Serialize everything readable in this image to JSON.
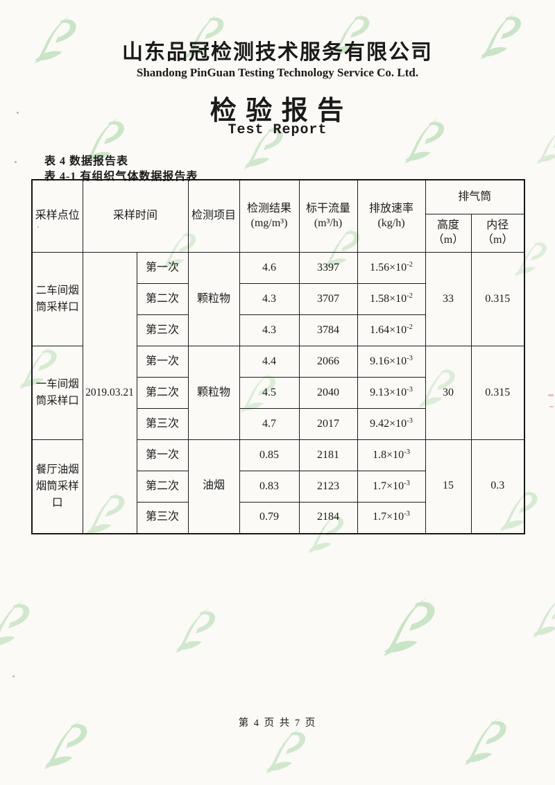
{
  "header": {
    "company_cn": "山东品冠检测技术服务有限公司",
    "company_en": "Shandong PinGuan Testing Technology Service Co. Ltd.",
    "title_cn": "检 验 报 告",
    "title_en": "Test Report"
  },
  "captions": {
    "line1": "表 4 数据报告表",
    "line2": "表 4-1 有组织气体数据报告表"
  },
  "table": {
    "headers": {
      "col_point": "采样点位",
      "col_time": "采样时间",
      "col_item": "检测项目",
      "col_result": "检测结果",
      "col_result_unit": "(mg/m³)",
      "col_flow": "标干流量",
      "col_flow_unit": "(m³/h)",
      "col_rate": "排放速率",
      "col_rate_unit": "(kg/h)",
      "col_stack": "排气筒",
      "col_height": "高度",
      "col_height_unit": "（m）",
      "col_diameter": "内径",
      "col_diameter_unit": "（m）"
    },
    "sample_date": "2019.03.21",
    "groups": [
      {
        "point": "二车间烟筒采样口",
        "item": "颗粒物",
        "stack_height": "33",
        "stack_diameter": "0.315",
        "runs": [
          {
            "seq": "第一次",
            "result": "4.6",
            "flow": "3397",
            "rate": "1.56×10",
            "rate_exp": "-2"
          },
          {
            "seq": "第二次",
            "result": "4.3",
            "flow": "3707",
            "rate": "1.58×10",
            "rate_exp": "-2"
          },
          {
            "seq": "第三次",
            "result": "4.3",
            "flow": "3784",
            "rate": "1.64×10",
            "rate_exp": "-2"
          }
        ]
      },
      {
        "point": "一车间烟筒采样口",
        "item": "颗粒物",
        "stack_height": "30",
        "stack_diameter": "0.315",
        "runs": [
          {
            "seq": "第一次",
            "result": "4.4",
            "flow": "2066",
            "rate": "9.16×10",
            "rate_exp": "-3"
          },
          {
            "seq": "第二次",
            "result": "4.5",
            "flow": "2040",
            "rate": "9.13×10",
            "rate_exp": "-3"
          },
          {
            "seq": "第三次",
            "result": "4.7",
            "flow": "2017",
            "rate": "9.42×10",
            "rate_exp": "-3"
          }
        ]
      },
      {
        "point": "餐厅油烟烟筒采样口",
        "item": "油烟",
        "stack_height": "15",
        "stack_diameter": "0.3",
        "runs": [
          {
            "seq": "第一次",
            "result": "0.85",
            "flow": "2181",
            "rate": "1.8×10",
            "rate_exp": "-3"
          },
          {
            "seq": "第二次",
            "result": "0.83",
            "flow": "2123",
            "rate": "1.7×10",
            "rate_exp": "-3"
          },
          {
            "seq": "第三次",
            "result": "0.79",
            "flow": "2184",
            "rate": "1.7×10",
            "rate_exp": "-3"
          }
        ]
      }
    ]
  },
  "footer": {
    "page_label": "第 4 页 共 7 页"
  },
  "watermark": {
    "logo_name": "pinguan-leaf-logo",
    "color": "#86c786"
  }
}
